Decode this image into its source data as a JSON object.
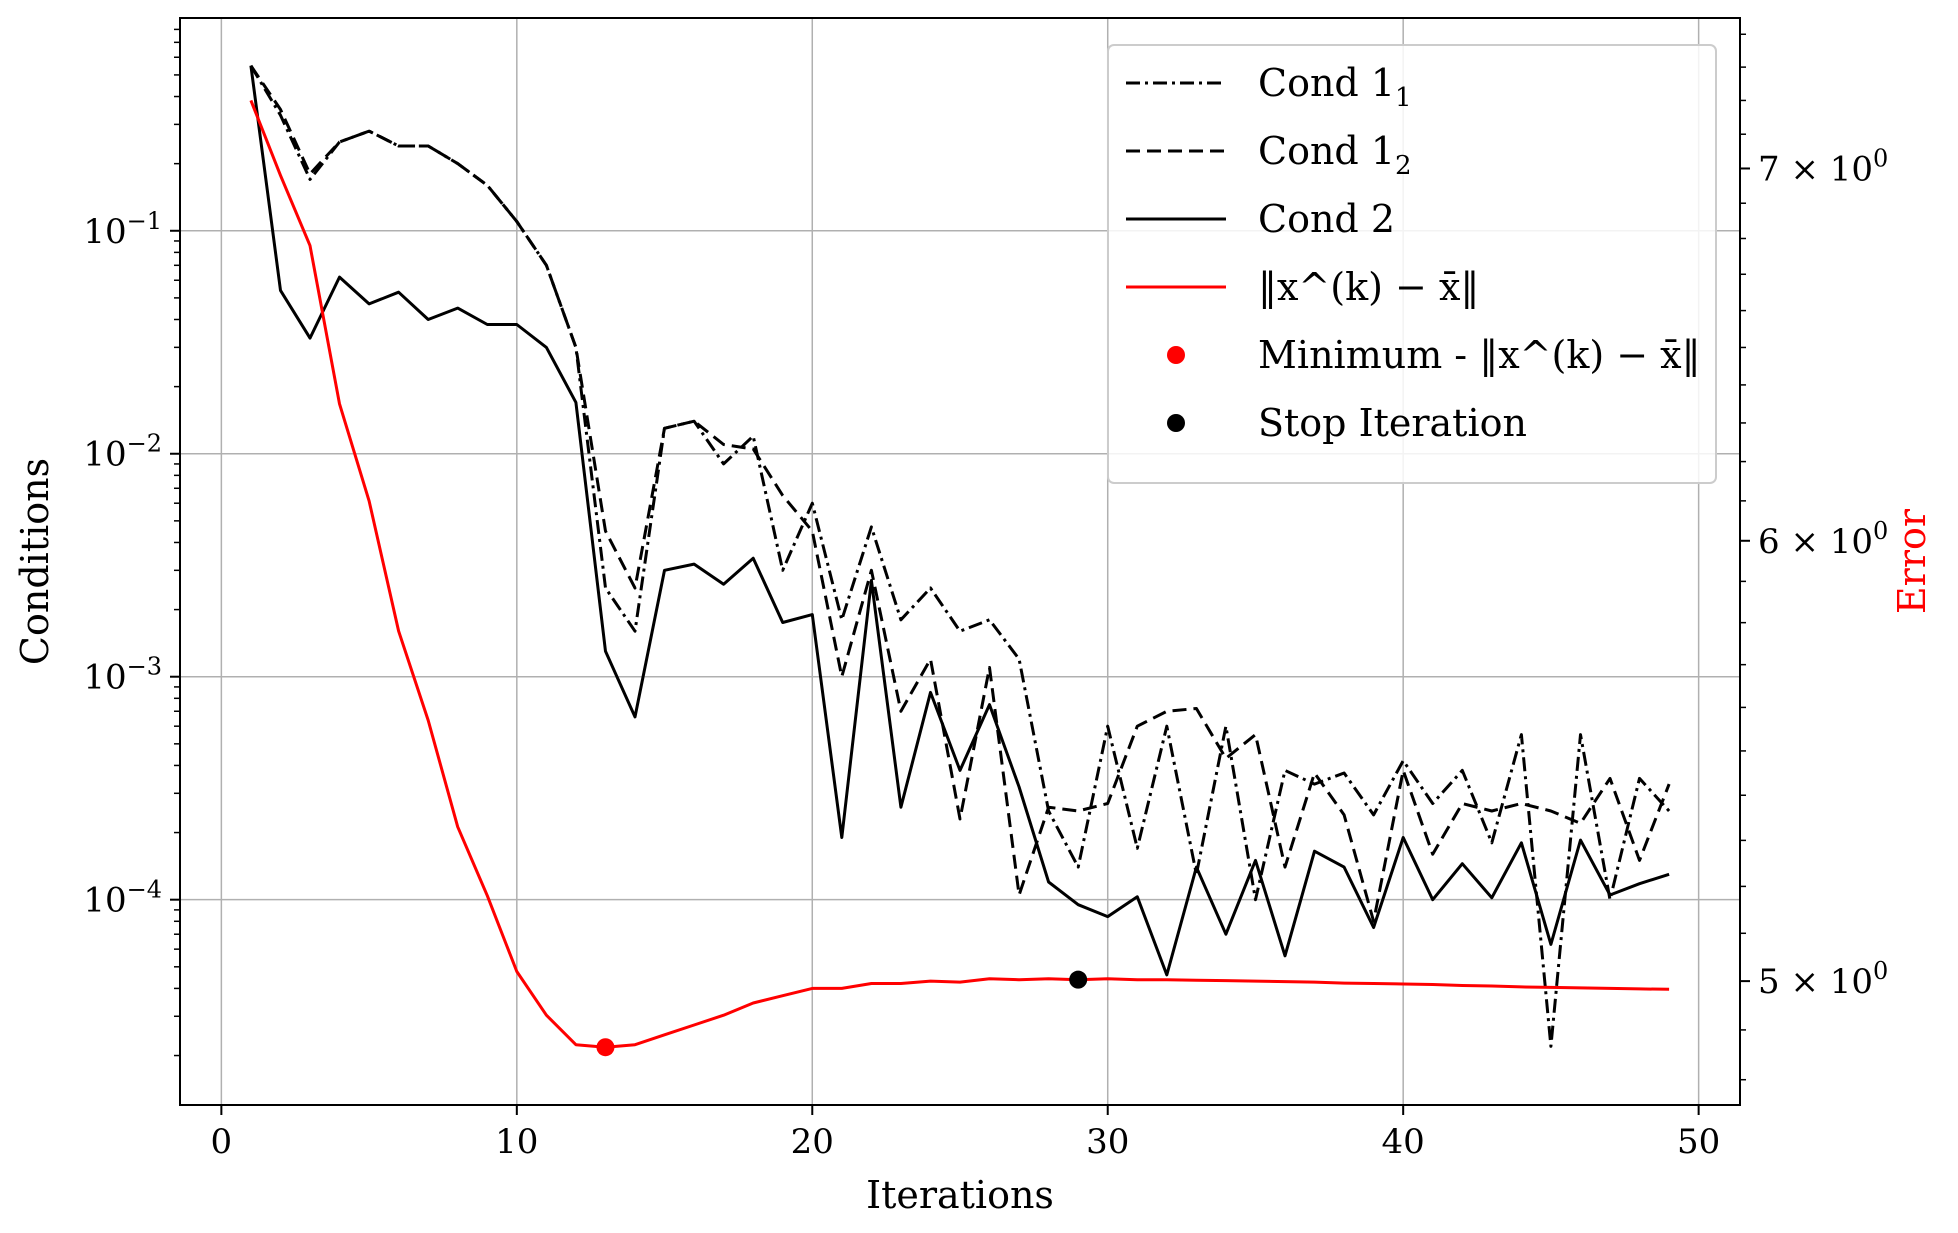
{
  "chart_data": {
    "type": "line",
    "xlabel": "Iterations",
    "ylabel": "Conditions",
    "y2label": "Error",
    "xlim": [
      -1.4,
      51.4
    ],
    "ylim": [
      1.2e-05,
      0.9
    ],
    "yscale": "log",
    "y2lim": [
      4.75,
      7.45
    ],
    "y2scale": "log",
    "xticks": [
      0,
      10,
      20,
      30,
      40,
      50
    ],
    "yticks": [
      {
        "value": 0.1,
        "label": "10^-1"
      },
      {
        "value": 0.01,
        "label": "10^-2"
      },
      {
        "value": 0.001,
        "label": "10^-3"
      },
      {
        "value": 0.0001,
        "label": "10^-4"
      }
    ],
    "y2ticks": [
      {
        "value": 5,
        "label": "5 × 10^0"
      },
      {
        "value": 6,
        "label": "6 × 10^0"
      },
      {
        "value": 7,
        "label": "7 × 10^0"
      }
    ],
    "grid": true,
    "legend_position": "top-right",
    "colors": {
      "conditions": "#000000",
      "error": "#ff0000"
    },
    "x": [
      1,
      2,
      3,
      4,
      5,
      6,
      7,
      8,
      9,
      10,
      11,
      12,
      13,
      14,
      15,
      16,
      17,
      18,
      19,
      20,
      21,
      22,
      23,
      24,
      25,
      26,
      27,
      28,
      29,
      30,
      31,
      32,
      33,
      34,
      35,
      36,
      37,
      38,
      39,
      40,
      41,
      42,
      43,
      44,
      45,
      46,
      47,
      48,
      49
    ],
    "series": [
      {
        "name": "Cond 1_1",
        "axis": "left",
        "style": "dashdot",
        "color": "#000000",
        "values": [
          0.55,
          0.33,
          0.17,
          0.25,
          0.28,
          0.24,
          0.24,
          0.2,
          0.16,
          0.11,
          0.07,
          0.03,
          0.0025,
          0.0016,
          0.013,
          0.014,
          0.009,
          0.012,
          0.003,
          0.006,
          0.0018,
          0.0047,
          0.0018,
          0.0025,
          0.0016,
          0.0018,
          0.0012,
          0.00025,
          0.00014,
          0.0006,
          0.00017,
          0.0006,
          0.00013,
          0.0006,
          0.0001,
          0.00038,
          0.00033,
          0.00037,
          0.00024,
          0.00042,
          0.00027,
          0.00038,
          0.00018,
          0.00055,
          2.2e-05,
          0.00055,
          0.0001,
          0.00035,
          0.00025
        ]
      },
      {
        "name": "Cond 1_2",
        "axis": "left",
        "style": "dashed",
        "color": "#000000",
        "values": [
          0.55,
          0.35,
          0.18,
          0.25,
          0.28,
          0.24,
          0.24,
          0.2,
          0.16,
          0.11,
          0.07,
          0.03,
          0.0045,
          0.0025,
          0.013,
          0.014,
          0.011,
          0.0105,
          0.0065,
          0.0045,
          0.001,
          0.003,
          0.0007,
          0.0012,
          0.00023,
          0.0011,
          0.000105,
          0.00026,
          0.00025,
          0.00027,
          0.0006,
          0.0007,
          0.00072,
          0.00043,
          0.00055,
          0.00014,
          0.00037,
          0.00024,
          8e-05,
          0.00038,
          0.00016,
          0.00027,
          0.00025,
          0.00027,
          0.00025,
          0.00022,
          0.00035,
          0.00015,
          0.00033
        ]
      },
      {
        "name": "Cond 2",
        "axis": "left",
        "style": "solid",
        "color": "#000000",
        "values": [
          0.55,
          0.054,
          0.033,
          0.062,
          0.047,
          0.053,
          0.04,
          0.045,
          0.038,
          0.038,
          0.03,
          0.017,
          0.0013,
          0.00066,
          0.003,
          0.0032,
          0.0026,
          0.0034,
          0.00175,
          0.0019,
          0.00019,
          0.0027,
          0.00026,
          0.00085,
          0.00038,
          0.00075,
          0.00032,
          0.00012,
          9.5e-05,
          8.4e-05,
          0.000103,
          4.6e-05,
          0.00014,
          7e-05,
          0.00015,
          5.6e-05,
          0.000165,
          0.00014,
          7.5e-05,
          0.00019,
          0.0001,
          0.000145,
          0.000102,
          0.00018,
          6.3e-05,
          0.000185,
          0.000105,
          0.000118,
          0.00013
        ]
      },
      {
        "name": "‖x^(k) − x̄‖",
        "axis": "right",
        "style": "solid",
        "color": "#ff0000",
        "values": [
          7.2,
          6.98,
          6.78,
          6.35,
          6.1,
          5.78,
          5.57,
          5.33,
          5.18,
          5.02,
          4.93,
          4.87,
          4.865,
          4.87,
          4.89,
          4.91,
          4.93,
          4.955,
          4.97,
          4.985,
          4.985,
          4.995,
          4.995,
          5.0,
          4.998,
          5.005,
          5.003,
          5.005,
          5.003,
          5.005,
          5.003,
          5.003,
          5.002,
          5.001,
          5.0,
          4.999,
          4.998,
          4.996,
          4.995,
          4.994,
          4.993,
          4.991,
          4.99,
          4.988,
          4.987,
          4.986,
          4.985,
          4.984,
          4.983
        ]
      }
    ],
    "markers": [
      {
        "name": "Minimum - ‖x^(k) − x̄‖",
        "x": 13,
        "y": 4.865,
        "axis": "right",
        "color": "#ff0000"
      },
      {
        "name": "Stop Iteration",
        "x": 29,
        "y": 5.003,
        "axis": "right",
        "color": "#000000"
      }
    ]
  }
}
